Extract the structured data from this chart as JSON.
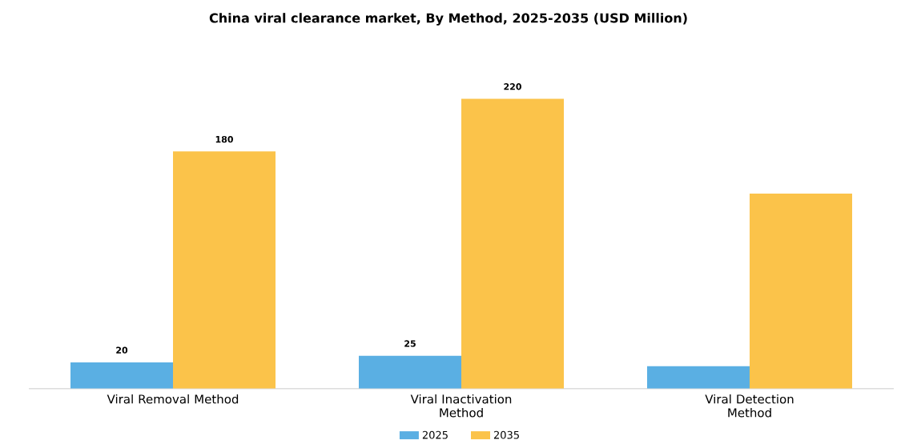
{
  "chart_data": {
    "type": "bar",
    "title": "China viral clearance market, By Method, 2025-2035 (USD Million)",
    "categories": [
      "Viral Removal Method",
      "Viral Inactivation Method",
      "Viral Detection Method"
    ],
    "series": [
      {
        "name": "2025",
        "color": "#5aafe3",
        "values": [
          20,
          25,
          17
        ],
        "value_labels": [
          "20",
          "25",
          null
        ]
      },
      {
        "name": "2035",
        "color": "#fbc34a",
        "values": [
          180,
          220,
          148
        ],
        "value_labels": [
          "180",
          "220",
          null
        ]
      }
    ],
    "legend": "bottom"
  }
}
